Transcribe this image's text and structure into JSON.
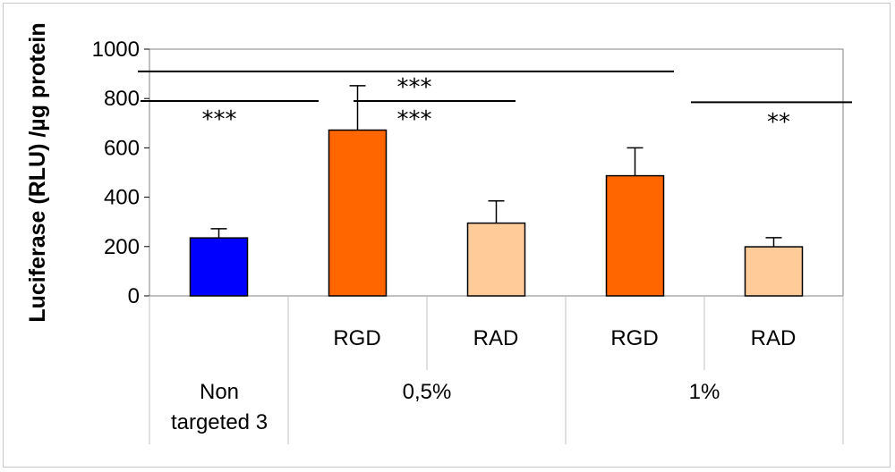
{
  "chart_data": {
    "type": "bar",
    "title": "",
    "xlabel": "",
    "ylabel": "Luciferase (RLU) /µg protein",
    "ylim": [
      0,
      1000
    ],
    "yticks": [
      0,
      200,
      400,
      600,
      800,
      1000
    ],
    "bars": [
      {
        "group": "Non targeted 3",
        "label": "",
        "value": 235,
        "error": 37,
        "color": "#0000ff"
      },
      {
        "group": "0,5%",
        "label": "RGD",
        "value": 672,
        "error": 180,
        "color": "#ff6600"
      },
      {
        "group": "0,5%",
        "label": "RAD",
        "value": 295,
        "error": 90,
        "color": "#ffcc99"
      },
      {
        "group": "1%",
        "label": "RGD",
        "value": 487,
        "error": 113,
        "color": "#ff6600"
      },
      {
        "group": "1%",
        "label": "RAD",
        "value": 199,
        "error": 37,
        "color": "#ffcc99"
      }
    ],
    "group_labels": [
      {
        "line1": "Non",
        "line2": "targeted 3"
      },
      {
        "line1": "0,5%"
      },
      {
        "line1": "1%"
      }
    ],
    "annotations": [
      {
        "text": "***",
        "level": 790,
        "from": "axis-left",
        "to": "Non targeted 3"
      },
      {
        "text": "***",
        "level": 790,
        "from": "0,5% RGD",
        "to": "0,5% RAD"
      },
      {
        "text": "***",
        "level": 910,
        "from": "axis-left",
        "to": "1% RGD"
      },
      {
        "text": "**",
        "level": 785,
        "from": "1% RGD",
        "to": "1% RAD"
      }
    ]
  }
}
